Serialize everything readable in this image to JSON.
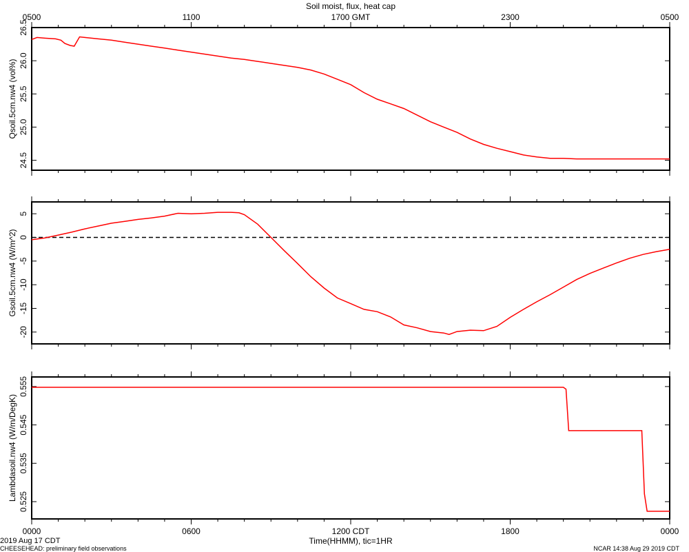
{
  "figure": {
    "title": "Soil moist, flux, heat cap",
    "top_axis_ticks": [
      "0500",
      "1100",
      "1700 GMT",
      "2300",
      "0500"
    ],
    "bottom_axis_ticks": [
      "0000",
      "0600",
      "1200 CDT",
      "1800",
      "0000"
    ],
    "xlabel": "Time(HHMM), tic=1HR",
    "date_label": "2019 Aug 17 CDT",
    "project_note": "CHEESEHEAD: preliminary field observations",
    "ncar_stamp": "NCAR 14:38 Aug 29 2019 CDT"
  },
  "colors": {
    "series": "#ff0000",
    "axes": "#000000",
    "zero_line": "#000000"
  },
  "chart_data": [
    {
      "type": "line",
      "ylabel": "Qsoil.5cm.nw4 (vol%)",
      "ylim": [
        24.35,
        26.5
      ],
      "yticks": [
        "24.5",
        "25.0",
        "25.5",
        "26.0",
        "26.5"
      ],
      "xlim": [
        0,
        24
      ],
      "series": [
        {
          "x": [
            0,
            0.2,
            0.5,
            0.9,
            1.1,
            1.25,
            1.45,
            1.6,
            1.8,
            2,
            2.5,
            3,
            3.5,
            4,
            4.5,
            5,
            5.5,
            6,
            6.5,
            7,
            7.5,
            8,
            8.5,
            9,
            9.5,
            10,
            10.5,
            11,
            11.5,
            12,
            12.5,
            13,
            13.5,
            14,
            14.5,
            15,
            15.5,
            16,
            16.5,
            17,
            17.5,
            18,
            18.5,
            19,
            19.5,
            20,
            20.5,
            21,
            21.5,
            22,
            22.5,
            23,
            23.5,
            24
          ],
          "y": [
            26.32,
            26.35,
            26.34,
            26.33,
            26.31,
            26.26,
            26.23,
            26.22,
            26.36,
            26.35,
            26.33,
            26.31,
            26.28,
            26.25,
            26.22,
            26.19,
            26.16,
            26.13,
            26.1,
            26.07,
            26.04,
            26.02,
            25.99,
            25.96,
            25.93,
            25.9,
            25.86,
            25.8,
            25.72,
            25.64,
            25.52,
            25.42,
            25.35,
            25.28,
            25.18,
            25.08,
            25.0,
            24.92,
            24.82,
            24.74,
            24.68,
            24.63,
            24.58,
            24.55,
            24.53,
            24.53,
            24.52,
            24.52,
            24.52,
            24.52,
            24.52,
            24.52,
            24.52,
            24.52
          ]
        }
      ]
    },
    {
      "type": "line",
      "ylabel": "Gsoil.5cm.nw4 (W/m^2)",
      "ylim": [
        -22.5,
        7.5
      ],
      "yticks": [
        "-20",
        "-15",
        "-10",
        "-5",
        "0",
        "5"
      ],
      "xlim": [
        0,
        24
      ],
      "reference_line": 0,
      "series": [
        {
          "x": [
            0,
            0.5,
            1,
            1.5,
            2,
            2.5,
            3,
            3.5,
            4,
            4.5,
            5,
            5.5,
            6,
            6.5,
            7,
            7.5,
            7.8,
            8,
            8.5,
            9,
            9.5,
            10,
            10.5,
            11,
            11.5,
            12,
            12.5,
            13,
            13.5,
            14,
            14.5,
            15,
            15.5,
            15.7,
            16,
            16.5,
            17,
            17.5,
            18,
            18.5,
            19,
            19.5,
            20,
            20.5,
            21,
            21.5,
            22,
            22.5,
            23,
            23.5,
            24
          ],
          "y": [
            -0.5,
            -0.1,
            0.5,
            1.1,
            1.8,
            2.4,
            3.0,
            3.4,
            3.8,
            4.1,
            4.5,
            5.1,
            5.0,
            5.1,
            5.3,
            5.3,
            5.2,
            4.8,
            2.8,
            0.0,
            -2.8,
            -5.5,
            -8.3,
            -10.7,
            -12.8,
            -14.0,
            -15.2,
            -15.7,
            -16.8,
            -18.5,
            -19.1,
            -19.9,
            -20.2,
            -20.5,
            -19.9,
            -19.6,
            -19.7,
            -18.8,
            -16.9,
            -15.2,
            -13.6,
            -12.1,
            -10.5,
            -8.9,
            -7.6,
            -6.5,
            -5.4,
            -4.4,
            -3.6,
            -3.0,
            -2.5
          ]
        }
      ]
    },
    {
      "type": "line",
      "ylabel": "Lambdasoil.nw4 (W/m/DegK)",
      "ylim": [
        0.5205,
        0.5575
      ],
      "yticks": [
        "0.525",
        "0.535",
        "0.545",
        "0.555"
      ],
      "xlim": [
        0,
        24
      ],
      "series": [
        {
          "x": [
            0,
            20,
            20.1,
            20.2,
            22.95,
            23.05,
            23.15,
            24
          ],
          "y": [
            0.5548,
            0.5548,
            0.5543,
            0.5435,
            0.5435,
            0.527,
            0.5225,
            0.5225
          ]
        }
      ]
    }
  ]
}
